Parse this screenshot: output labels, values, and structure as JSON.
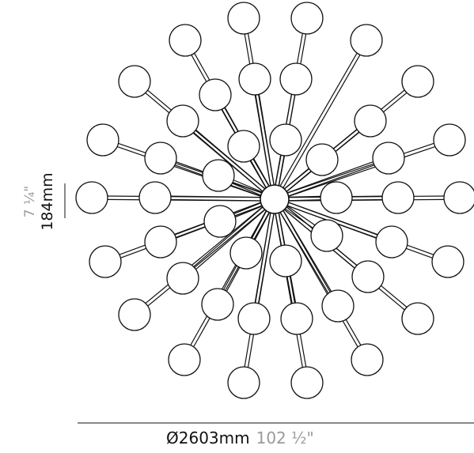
{
  "dimensions": {
    "height_mm": "184mm",
    "height_in": "7 ¼\"",
    "diameter_mm": "Ø2603mm",
    "diameter_in": "102 ½\""
  },
  "colors": {
    "line": "#111111",
    "imperial_text": "#9a9a9a",
    "metric_text": "#111111"
  }
}
